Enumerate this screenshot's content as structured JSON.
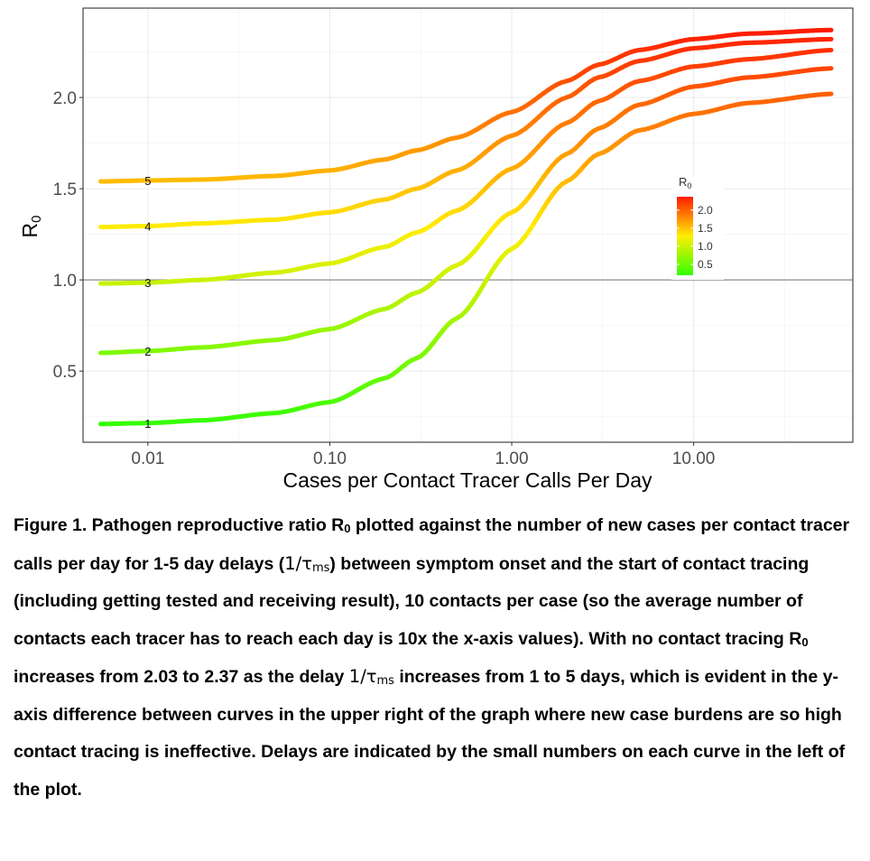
{
  "chart_data": {
    "type": "line",
    "x_scale": "log",
    "xlabel": "Cases per Contact Tracer Calls Per Day",
    "ylabel": "R",
    "ylabel_sub": "0",
    "x_ticks": [
      {
        "value": 0.01,
        "label": "0.01"
      },
      {
        "value": 0.1,
        "label": "0.10"
      },
      {
        "value": 1,
        "label": "1.00"
      },
      {
        "value": 10,
        "label": "10.00"
      }
    ],
    "y_ticks": [
      {
        "value": 0.5,
        "label": "0.5"
      },
      {
        "value": 1.0,
        "label": "1.0"
      },
      {
        "value": 1.5,
        "label": "1.5"
      },
      {
        "value": 2.0,
        "label": "2.0"
      }
    ],
    "xlim": [
      0.0044,
      75
    ],
    "ylim": [
      0.11,
      2.49
    ],
    "grid": true,
    "reference_line_y": 1.0,
    "color_scale": {
      "title": "R",
      "title_sub": "0",
      "low_color": "#33ff00",
      "mid_color": "#ffee00",
      "high_color": "#ff1a00",
      "range": [
        0.2,
        2.37
      ],
      "ticks": [
        {
          "value": 2.0,
          "label": "2.0"
        },
        {
          "value": 1.5,
          "label": "1.5"
        },
        {
          "value": 1.0,
          "label": "1.0"
        },
        {
          "value": 0.5,
          "label": "0.5"
        }
      ],
      "placement": "right-middle"
    },
    "series": [
      {
        "name": "1",
        "x": [
          0.0055,
          0.01,
          0.02,
          0.05,
          0.1,
          0.2,
          0.3,
          0.5,
          1,
          2,
          3,
          5,
          10,
          20,
          57
        ],
        "y": [
          0.21,
          0.215,
          0.23,
          0.27,
          0.33,
          0.46,
          0.57,
          0.79,
          1.17,
          1.54,
          1.69,
          1.82,
          1.91,
          1.97,
          2.02
        ]
      },
      {
        "name": "2",
        "x": [
          0.0055,
          0.01,
          0.02,
          0.05,
          0.1,
          0.2,
          0.3,
          0.5,
          1,
          2,
          3,
          5,
          10,
          20,
          57
        ],
        "y": [
          0.6,
          0.61,
          0.63,
          0.67,
          0.73,
          0.84,
          0.93,
          1.08,
          1.37,
          1.69,
          1.83,
          1.96,
          2.06,
          2.11,
          2.16
        ]
      },
      {
        "name": "3",
        "x": [
          0.0055,
          0.01,
          0.02,
          0.05,
          0.1,
          0.2,
          0.3,
          0.5,
          1,
          2,
          3,
          5,
          10,
          20,
          57
        ],
        "y": [
          0.98,
          0.985,
          1.0,
          1.04,
          1.09,
          1.18,
          1.26,
          1.38,
          1.61,
          1.86,
          1.98,
          2.09,
          2.17,
          2.21,
          2.26
        ]
      },
      {
        "name": "4",
        "x": [
          0.0055,
          0.01,
          0.02,
          0.05,
          0.1,
          0.2,
          0.3,
          0.5,
          1,
          2,
          3,
          5,
          10,
          20,
          57
        ],
        "y": [
          1.29,
          1.295,
          1.31,
          1.33,
          1.37,
          1.44,
          1.5,
          1.6,
          1.79,
          2.0,
          2.11,
          2.2,
          2.27,
          2.3,
          2.32
        ]
      },
      {
        "name": "5",
        "x": [
          0.0055,
          0.01,
          0.02,
          0.05,
          0.1,
          0.2,
          0.3,
          0.5,
          1,
          2,
          3,
          5,
          10,
          20,
          57
        ],
        "y": [
          1.54,
          1.545,
          1.55,
          1.57,
          1.6,
          1.66,
          1.71,
          1.78,
          1.92,
          2.09,
          2.18,
          2.26,
          2.32,
          2.35,
          2.37
        ]
      }
    ],
    "curve_labels_x": 0.01
  },
  "caption": {
    "seg1": "Figure 1. Pathogen reproductive ratio R",
    "sub_zero_1": "0",
    "seg2": " plotted against the number of new cases per contact tracer calls per day for 1-5 day delays (",
    "delay_sym_1": "1/τ",
    "sub_ms_1": "ms",
    "seg3": ") between symptom onset and the start of contact tracing (including getting tested and receiving result), 10 contacts per case (so the average number of contacts each tracer has to reach each day is 10x the x-axis values). With no contact tracing R",
    "sub_zero_2": "0",
    "seg4": " increases from 2.03 to 2.37 as the delay ",
    "delay_sym_2": "1/τ",
    "sub_ms_2": "ms",
    "seg5": " increases from 1 to 5 days, which is evident in the y-axis difference between curves in the upper right of the graph where new case burdens are so high contact tracing is ineffective. Delays are indicated by the small numbers on each curve in the left of the plot."
  }
}
